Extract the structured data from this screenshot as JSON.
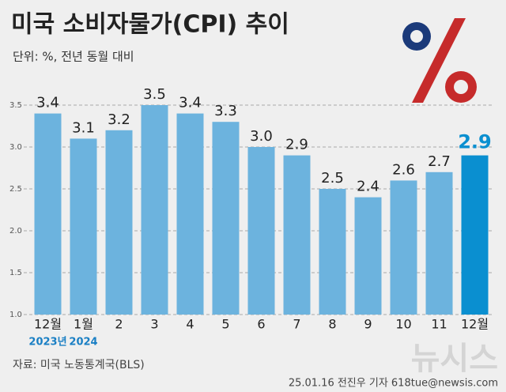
{
  "chart_data": {
    "type": "bar",
    "title": "미국 소비자물가(CPI) 추이",
    "subtitle": "단위: %, 전년 동월 대비",
    "categories": [
      "12월",
      "1월",
      "2",
      "3",
      "4",
      "5",
      "6",
      "7",
      "8",
      "9",
      "10",
      "11",
      "12월"
    ],
    "category_sublabels": [
      "2023년",
      "2024",
      null,
      null,
      null,
      null,
      null,
      null,
      null,
      null,
      null,
      null,
      null
    ],
    "values": [
      3.4,
      3.1,
      3.2,
      3.5,
      3.4,
      3.3,
      3.0,
      2.9,
      2.5,
      2.4,
      2.6,
      2.7,
      2.9
    ],
    "value_labels": [
      "3.4",
      "3.1",
      "3.2",
      "3.5",
      "3.4",
      "3.3",
      "3.0",
      "2.9",
      "2.5",
      "2.4",
      "2.6",
      "2.7",
      "2.9"
    ],
    "colors": [
      "#6cb3de",
      "#6cb3de",
      "#6cb3de",
      "#6cb3de",
      "#6cb3de",
      "#6cb3de",
      "#6cb3de",
      "#6cb3de",
      "#6cb3de",
      "#6cb3de",
      "#6cb3de",
      "#6cb3de",
      "#0a8fd0"
    ],
    "ylim": [
      1.0,
      3.5
    ],
    "yticks": [
      {
        "value": 1,
        "label": "1.0"
      },
      {
        "value": 1.5,
        "label": "1.5"
      },
      {
        "value": 2,
        "label": "2.0"
      },
      {
        "value": 2.5,
        "label": "2.5"
      },
      {
        "value": 3,
        "label": "3.0"
      },
      {
        "value": 3.5,
        "label": "3.5"
      }
    ],
    "grid": true,
    "source": "자료: 미국 노동통계국(BLS)",
    "credit": "25.01.16 전진우 기자 618tue@newsis.com",
    "watermark": "뉴시스"
  }
}
